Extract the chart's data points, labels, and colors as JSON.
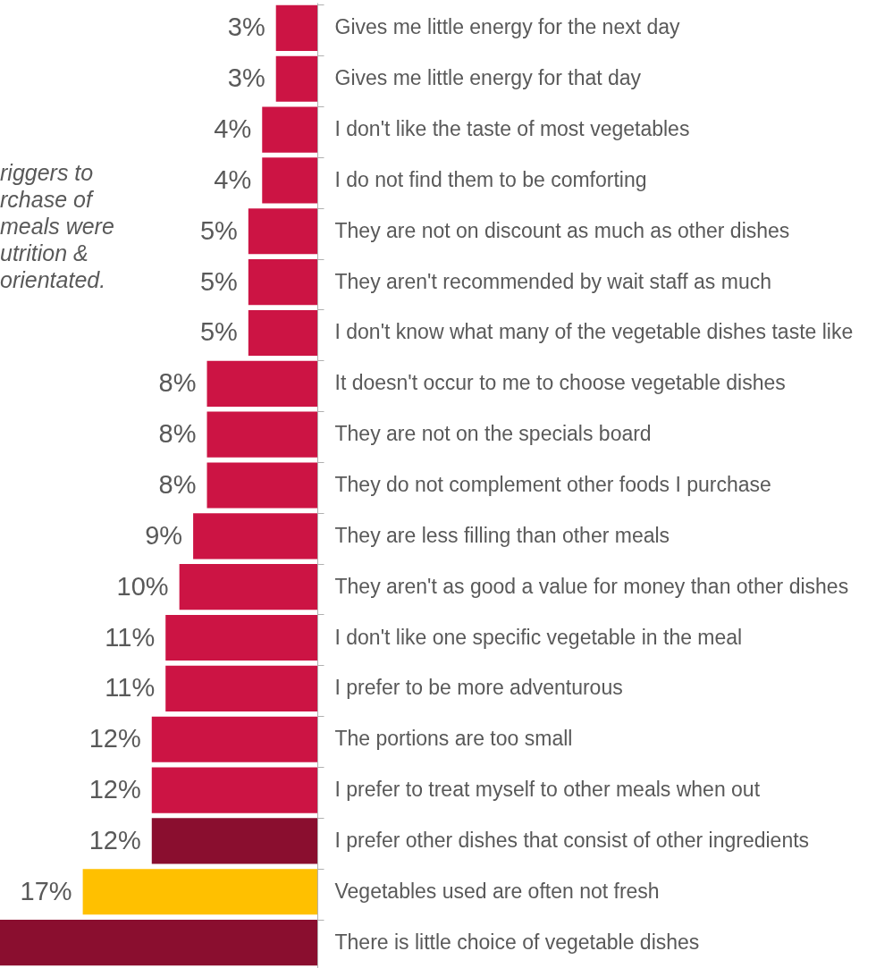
{
  "chart_data": {
    "type": "bar",
    "orientation": "horizontal",
    "categories": [
      "Gives me little energy for the next day",
      "Gives me little energy for that day",
      "I don't like the taste of most vegetables",
      "I do not find them to be comforting",
      "They are not on discount as much as other dishes",
      "They aren't recommended by wait staff as much",
      "I don't know what many of the vegetable dishes taste like",
      "It doesn't occur to me to choose vegetable dishes",
      "They are not on the specials board",
      "They do not complement other foods I purchase",
      "They are less filling than other meals",
      "They aren't as good a value for money than other dishes",
      "I don't like one specific vegetable in the meal",
      "I prefer to be more adventurous",
      "The portions are too small",
      "I prefer to treat myself to other meals when out",
      "I prefer other dishes that consist of other ingredients",
      "Vegetables used are often not fresh",
      "There is little choice of vegetable dishes"
    ],
    "values": [
      3,
      3,
      4,
      4,
      5,
      5,
      5,
      8,
      8,
      8,
      9,
      10,
      11,
      11,
      12,
      12,
      12,
      17,
      23
    ],
    "value_labels": [
      "3%",
      "3%",
      "4%",
      "4%",
      "5%",
      "5%",
      "5%",
      "8%",
      "8%",
      "8%",
      "9%",
      "10%",
      "11%",
      "11%",
      "12%",
      "12%",
      "12%",
      "17%",
      null
    ],
    "colors": [
      "#cc1444",
      "#cc1444",
      "#cc1444",
      "#cc1444",
      "#cc1444",
      "#cc1444",
      "#cc1444",
      "#cc1444",
      "#cc1444",
      "#cc1444",
      "#cc1444",
      "#cc1444",
      "#cc1444",
      "#cc1444",
      "#cc1444",
      "#cc1444",
      "#8a0e2f",
      "#ffc000",
      "#8a0e2f"
    ],
    "xlim": [
      23,
      0
    ],
    "annotations": [
      "riggers to\nrchase of\nmeals were\nutrition &\norientated."
    ]
  }
}
